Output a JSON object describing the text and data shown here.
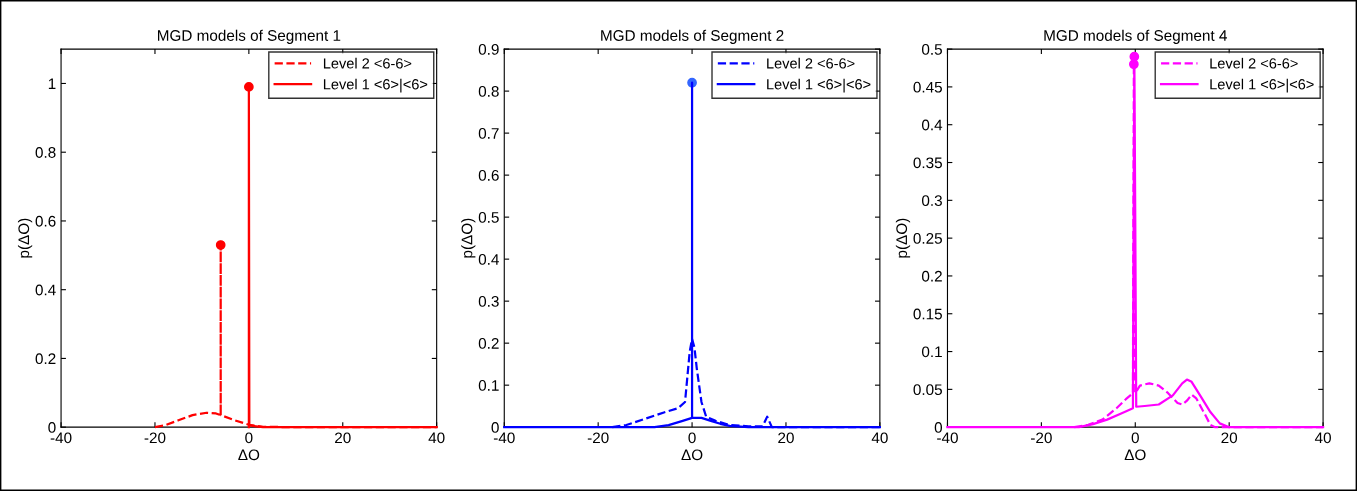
{
  "chart_data": [
    {
      "type": "line",
      "title": "MGD models of Segment 1",
      "xlabel": "ΔO",
      "ylabel": "p(ΔO)",
      "xlim": [
        -40,
        40
      ],
      "xticks": [
        -40,
        -20,
        0,
        20,
        40
      ],
      "ylim": [
        0,
        1.1
      ],
      "yticks": [
        0,
        0.2,
        0.4,
        0.6,
        0.8,
        1
      ],
      "grid": false,
      "legend": "top right",
      "series": [
        {
          "name": "Level 2 <6-6>",
          "color": "#ff0000",
          "line_style": "dashed",
          "x": [
            -20,
            -18,
            -15,
            -12,
            -9,
            -7,
            -6,
            -6,
            -6,
            -3,
            0,
            3,
            10,
            40
          ],
          "values": [
            0,
            0.005,
            0.02,
            0.035,
            0.042,
            0.04,
            0.035,
            0.53,
            0.035,
            0.02,
            0.007,
            0.001,
            0,
            0
          ]
        },
        {
          "name": "Level 1 <6>|<6>",
          "color": "#ff0000",
          "line_style": "solid",
          "x": [
            0,
            0,
            0.1,
            3,
            40
          ],
          "values": [
            0,
            0.99,
            0.005,
            0,
            0
          ]
        },
        {
          "type": "scatter",
          "color": "#ff0000",
          "marker": "circle",
          "x": [
            -6,
            0
          ],
          "values": [
            0.53,
            0.99
          ]
        }
      ]
    },
    {
      "type": "line",
      "title": "MGD models of Segment 2",
      "xlabel": "ΔO",
      "ylabel": "p(ΔO)",
      "xlim": [
        -40,
        40
      ],
      "xticks": [
        -40,
        -20,
        0,
        20,
        40
      ],
      "ylim": [
        0,
        0.9
      ],
      "yticks": [
        0,
        0.1,
        0.2,
        0.3,
        0.4,
        0.5,
        0.6,
        0.7,
        0.8,
        0.9
      ],
      "grid": false,
      "legend": "top right",
      "series": [
        {
          "name": "Level 2 <6-6>",
          "color": "#0000ff",
          "line_style": "dashed",
          "x": [
            -17,
            -14,
            -10,
            -6,
            -3,
            -1.5,
            -1,
            -0.5,
            0,
            0.5,
            1,
            2,
            3,
            5,
            8,
            12,
            15,
            16,
            17,
            40
          ],
          "values": [
            0,
            0.005,
            0.02,
            0.035,
            0.045,
            0.06,
            0.12,
            0.18,
            0.21,
            0.19,
            0.14,
            0.06,
            0.025,
            0.015,
            0.005,
            0.002,
            0.002,
            0.025,
            0,
            0
          ]
        },
        {
          "name": "Level 1 <6>|<6>",
          "color": "#0000ff",
          "line_style": "solid",
          "x": [
            -40,
            -8,
            -5,
            -2,
            0,
            0,
            0,
            2,
            4,
            6,
            8,
            12,
            40
          ],
          "values": [
            0,
            0,
            0.005,
            0.015,
            0.022,
            0.82,
            0.022,
            0.022,
            0.015,
            0.008,
            0.003,
            0,
            0
          ]
        },
        {
          "type": "scatter",
          "color": "#3366ff",
          "marker": "circle",
          "x": [
            0
          ],
          "values": [
            0.82
          ]
        }
      ]
    },
    {
      "type": "line",
      "title": "MGD models of Segment 4",
      "xlabel": "ΔO",
      "ylabel": "p(ΔO)",
      "xlim": [
        -40,
        40
      ],
      "xticks": [
        -40,
        -20,
        0,
        20,
        40
      ],
      "ylim": [
        0,
        0.5
      ],
      "yticks": [
        0,
        0.05,
        0.1,
        0.15,
        0.2,
        0.25,
        0.3,
        0.35,
        0.4,
        0.45,
        0.5
      ],
      "grid": false,
      "legend": "top right",
      "series": [
        {
          "name": "Level 2 <6-6>",
          "color": "#ff00ff",
          "line_style": "dashed",
          "x": [
            -13,
            -10,
            -7,
            -4,
            -2,
            -0.5,
            -0.3,
            0,
            1,
            3,
            5,
            7,
            9,
            10,
            11,
            12,
            13,
            15,
            16,
            17,
            40
          ],
          "values": [
            0,
            0.003,
            0.01,
            0.025,
            0.037,
            0.045,
            0.48,
            0.045,
            0.055,
            0.058,
            0.055,
            0.045,
            0.032,
            0.03,
            0.035,
            0.043,
            0.038,
            0.015,
            0.003,
            0,
            0
          ]
        },
        {
          "name": "Level 1 <6>|<6>",
          "color": "#ff00ff",
          "line_style": "solid",
          "x": [
            -40,
            -12,
            -9,
            -6,
            -3,
            -0.5,
            -0.2,
            0,
            0.2,
            2,
            5,
            8,
            10,
            11,
            12,
            14,
            16,
            18,
            20,
            40
          ],
          "values": [
            0,
            0,
            0.004,
            0.01,
            0.018,
            0.025,
            0.49,
            0.27,
            0.027,
            0.028,
            0.03,
            0.042,
            0.058,
            0.063,
            0.06,
            0.04,
            0.02,
            0.005,
            0,
            0
          ]
        },
        {
          "type": "scatter",
          "color": "#ff00ff",
          "marker": "circle",
          "x": [
            -0.3,
            -0.2
          ],
          "values": [
            0.48,
            0.49
          ]
        }
      ]
    }
  ]
}
